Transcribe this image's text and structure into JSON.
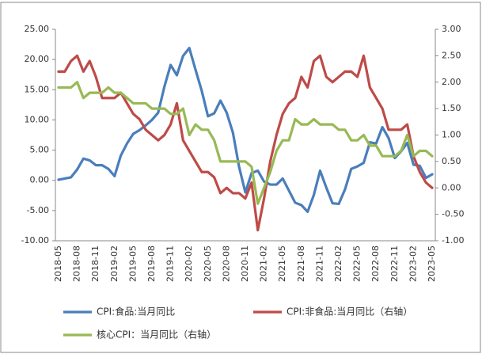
{
  "chart_data": {
    "type": "line",
    "categories": [
      "2018-05",
      null,
      null,
      "2018-08",
      null,
      null,
      "2018-11",
      null,
      null,
      "2019-02",
      null,
      null,
      "2019-05",
      null,
      null,
      "2019-08",
      null,
      null,
      "2019-11",
      null,
      null,
      "2020-02",
      null,
      null,
      "2020-05",
      null,
      null,
      "2020-08",
      null,
      null,
      "2020-11",
      null,
      null,
      "2021-02",
      null,
      null,
      "2021-05",
      null,
      null,
      "2021-08",
      null,
      null,
      "2021-11",
      null,
      null,
      "2022-02",
      null,
      null,
      "2022-05",
      null,
      null,
      "2022-08",
      null,
      null,
      "2022-11",
      null,
      null,
      "2023-02",
      null,
      null,
      "2023-05"
    ],
    "series": [
      {
        "name": "CPI:食品:当月同比",
        "color": "#4a7ebb",
        "values": [
          0.1,
          0.3,
          0.5,
          1.8,
          3.6,
          3.3,
          2.5,
          2.5,
          1.9,
          0.7,
          4.1,
          6.1,
          7.7,
          8.3,
          9.1,
          10.0,
          11.2,
          15.5,
          19.1,
          17.4,
          20.6,
          21.9,
          18.3,
          14.8,
          10.6,
          11.1,
          13.2,
          11.2,
          7.9,
          2.2,
          -2.0,
          1.2,
          1.6,
          -0.2,
          -0.7,
          -0.7,
          0.3,
          -1.7,
          -3.7,
          -4.1,
          -5.2,
          -2.4,
          1.6,
          -1.2,
          -3.8,
          -3.9,
          -1.5,
          1.9,
          2.3,
          2.9,
          6.3,
          6.1,
          8.8,
          7.0,
          3.7,
          4.8,
          6.2,
          2.6,
          2.4,
          0.4,
          1.0
        ]
      },
      {
        "name": "CPI:非食品:当月同比（右轴）",
        "color": "#be4b48",
        "axis": "y2",
        "values": [
          2.2,
          2.2,
          2.4,
          2.5,
          2.2,
          2.4,
          2.1,
          1.7,
          1.7,
          1.7,
          1.8,
          1.6,
          1.4,
          1.3,
          1.1,
          1.0,
          0.9,
          1.0,
          1.2,
          1.6,
          0.9,
          0.7,
          0.5,
          0.3,
          0.3,
          0.2,
          -0.1,
          0.0,
          -0.1,
          -0.1,
          -0.2,
          0.1,
          -0.8,
          -0.2,
          0.5,
          1.0,
          1.4,
          1.6,
          1.7,
          2.1,
          1.9,
          2.4,
          2.5,
          2.1,
          2.0,
          2.1,
          2.2,
          2.2,
          2.1,
          2.5,
          1.9,
          1.7,
          1.5,
          1.1,
          1.1,
          1.1,
          1.2,
          0.6,
          0.3,
          0.1,
          0.0
        ]
      },
      {
        "name": "核心CPI：当月同比（右轴）",
        "color": "#98b954",
        "axis": "y2",
        "values": [
          1.9,
          1.9,
          1.9,
          2.0,
          1.7,
          1.8,
          1.8,
          1.8,
          1.9,
          1.8,
          1.8,
          1.7,
          1.6,
          1.6,
          1.6,
          1.5,
          1.5,
          1.5,
          1.4,
          1.4,
          1.5,
          1.0,
          1.2,
          1.1,
          1.1,
          0.9,
          0.5,
          0.5,
          0.5,
          0.5,
          0.5,
          0.4,
          -0.3,
          0.0,
          0.3,
          0.7,
          0.9,
          0.9,
          1.3,
          1.2,
          1.2,
          1.3,
          1.2,
          1.2,
          1.2,
          1.1,
          1.1,
          0.9,
          0.9,
          1.0,
          0.8,
          0.8,
          0.6,
          0.6,
          0.6,
          0.7,
          1.0,
          0.6,
          0.7,
          0.7,
          0.6
        ]
      }
    ],
    "ylim": [
      -10,
      25
    ],
    "yticks": [
      {
        "value": 25,
        "label": "25.00"
      },
      {
        "value": 20,
        "label": "20.00"
      },
      {
        "value": 15,
        "label": "15.00"
      },
      {
        "value": 10,
        "label": "10.00"
      },
      {
        "value": 5,
        "label": "5.00"
      },
      {
        "value": 0,
        "label": "0.00"
      },
      {
        "value": -5,
        "label": "-5.00"
      },
      {
        "value": -10,
        "label": "-10.00"
      }
    ],
    "y2lim": [
      -1,
      3
    ],
    "y2ticks": [
      {
        "value": 3,
        "label": "3.00"
      },
      {
        "value": 2.5,
        "label": "2.50"
      },
      {
        "value": 2,
        "label": "2.00"
      },
      {
        "value": 1.5,
        "label": "1.50"
      },
      {
        "value": 1,
        "label": "1.00"
      },
      {
        "value": 0.5,
        "label": "0.50"
      },
      {
        "value": 0,
        "label": "0.00"
      },
      {
        "value": -0.5,
        "label": "-0.50"
      },
      {
        "value": -1,
        "label": "-1.00"
      }
    ],
    "grid": false
  }
}
